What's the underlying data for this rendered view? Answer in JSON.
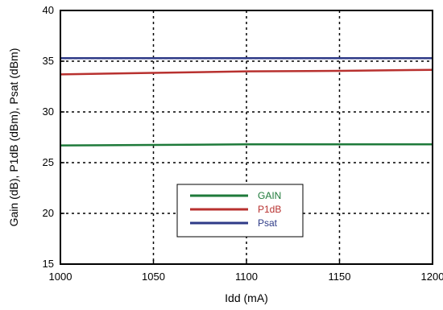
{
  "chart_data": {
    "type": "line",
    "xlabel": "Idd (mA)",
    "ylabel": "Gain (dB), P1dB (dBm), Psat (dBm)",
    "xlim": [
      1000,
      1200
    ],
    "ylim": [
      15,
      40
    ],
    "xticks": [
      1000,
      1050,
      1100,
      1150,
      1200
    ],
    "yticks": [
      15,
      20,
      25,
      30,
      35,
      40
    ],
    "grid": "dotted",
    "legend_position": "bottom-center",
    "x": [
      1000,
      1050,
      1100,
      1150,
      1200
    ],
    "series": [
      {
        "name": "GAIN",
        "color": "#1e7a3a",
        "values": [
          26.7,
          26.75,
          26.8,
          26.8,
          26.8
        ]
      },
      {
        "name": "P1dB",
        "color": "#b8312f",
        "values": [
          33.7,
          33.85,
          34.0,
          34.05,
          34.15
        ]
      },
      {
        "name": "Psat",
        "color": "#2e3a87",
        "values": [
          35.3,
          35.3,
          35.3,
          35.3,
          35.3
        ]
      }
    ]
  }
}
